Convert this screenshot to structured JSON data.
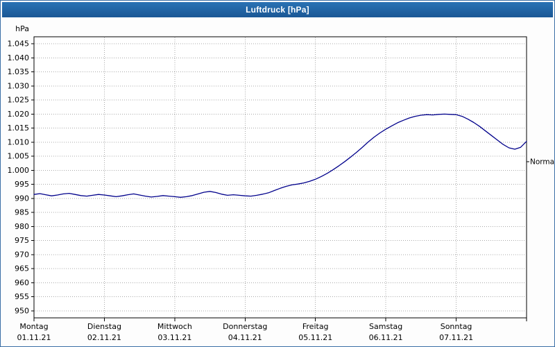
{
  "title": "Luftdruck [hPa]",
  "colors": {
    "titlebar_start": "#2a72b4",
    "titlebar_end": "#1a5795",
    "window_border": "#3a6ea5",
    "title_text": "#ffffff",
    "line": "#00008b",
    "grid": "#a8a8a8",
    "axis": "#000000",
    "plot_background": "#ffffff"
  },
  "chart_data": {
    "type": "line",
    "title": "Luftdruck [hPa]",
    "ylabel": "hPa",
    "xlabel": "",
    "grid": true,
    "legend_position": "none",
    "ylim": [
      947.5,
      1047.5
    ],
    "x_range_hours": [
      0,
      168
    ],
    "y_ticks": [
      {
        "value": 1045,
        "label": "1.045"
      },
      {
        "value": 1040,
        "label": "1.040"
      },
      {
        "value": 1035,
        "label": "1.035"
      },
      {
        "value": 1030,
        "label": "1.030"
      },
      {
        "value": 1025,
        "label": "1.025"
      },
      {
        "value": 1020,
        "label": "1.020"
      },
      {
        "value": 1015,
        "label": "1.015"
      },
      {
        "value": 1010,
        "label": "1.010"
      },
      {
        "value": 1005,
        "label": "1.005"
      },
      {
        "value": 1000,
        "label": "1.000"
      },
      {
        "value": 995,
        "label": "995"
      },
      {
        "value": 990,
        "label": "990"
      },
      {
        "value": 985,
        "label": "985"
      },
      {
        "value": 980,
        "label": "980"
      },
      {
        "value": 975,
        "label": "975"
      },
      {
        "value": 970,
        "label": "970"
      },
      {
        "value": 965,
        "label": "965"
      },
      {
        "value": 960,
        "label": "960"
      },
      {
        "value": 955,
        "label": "955"
      },
      {
        "value": 950,
        "label": "950"
      }
    ],
    "x_days": [
      {
        "name": "Montag",
        "date": "01.11.21"
      },
      {
        "name": "Dienstag",
        "date": "02.11.21"
      },
      {
        "name": "Mittwoch",
        "date": "03.11.21"
      },
      {
        "name": "Donnerstag",
        "date": "04.11.21"
      },
      {
        "name": "Freitag",
        "date": "05.11.21"
      },
      {
        "name": "Samstag",
        "date": "06.11.21"
      },
      {
        "name": "Sonntag",
        "date": "07.11.21"
      }
    ],
    "normal_marker": {
      "label": "Normal",
      "value": 1003
    },
    "series": [
      {
        "name": "Luftdruck",
        "unit": "hPa",
        "points": [
          [
            0,
            991.4
          ],
          [
            2,
            991.7
          ],
          [
            4,
            991.3
          ],
          [
            6,
            990.9
          ],
          [
            8,
            991.2
          ],
          [
            10,
            991.6
          ],
          [
            12,
            991.8
          ],
          [
            14,
            991.4
          ],
          [
            16,
            991.0
          ],
          [
            18,
            990.8
          ],
          [
            20,
            991.1
          ],
          [
            22,
            991.4
          ],
          [
            24,
            991.2
          ],
          [
            26,
            990.9
          ],
          [
            28,
            990.6
          ],
          [
            30,
            990.9
          ],
          [
            32,
            991.3
          ],
          [
            34,
            991.6
          ],
          [
            36,
            991.2
          ],
          [
            38,
            990.8
          ],
          [
            40,
            990.5
          ],
          [
            42,
            990.7
          ],
          [
            44,
            991.0
          ],
          [
            46,
            990.8
          ],
          [
            48,
            990.6
          ],
          [
            50,
            990.4
          ],
          [
            52,
            990.6
          ],
          [
            54,
            991.0
          ],
          [
            56,
            991.6
          ],
          [
            58,
            992.2
          ],
          [
            60,
            992.5
          ],
          [
            62,
            992.1
          ],
          [
            64,
            991.5
          ],
          [
            66,
            991.1
          ],
          [
            68,
            991.3
          ],
          [
            70,
            991.1
          ],
          [
            72,
            990.9
          ],
          [
            74,
            990.8
          ],
          [
            76,
            991.1
          ],
          [
            78,
            991.5
          ],
          [
            80,
            992.0
          ],
          [
            82,
            992.8
          ],
          [
            84,
            993.6
          ],
          [
            86,
            994.3
          ],
          [
            88,
            994.8
          ],
          [
            90,
            995.1
          ],
          [
            92,
            995.5
          ],
          [
            94,
            996.1
          ],
          [
            96,
            996.8
          ],
          [
            98,
            997.8
          ],
          [
            100,
            998.9
          ],
          [
            102,
            1000.2
          ],
          [
            104,
            1001.6
          ],
          [
            106,
            1003.1
          ],
          [
            108,
            1004.7
          ],
          [
            110,
            1006.4
          ],
          [
            112,
            1008.2
          ],
          [
            114,
            1010.1
          ],
          [
            116,
            1011.8
          ],
          [
            118,
            1013.3
          ],
          [
            120,
            1014.6
          ],
          [
            122,
            1015.8
          ],
          [
            124,
            1016.9
          ],
          [
            126,
            1017.8
          ],
          [
            128,
            1018.6
          ],
          [
            130,
            1019.2
          ],
          [
            132,
            1019.6
          ],
          [
            134,
            1019.8
          ],
          [
            136,
            1019.7
          ],
          [
            138,
            1019.9
          ],
          [
            140,
            1020.0
          ],
          [
            142,
            1019.9
          ],
          [
            144,
            1019.8
          ],
          [
            146,
            1019.2
          ],
          [
            148,
            1018.2
          ],
          [
            150,
            1017.0
          ],
          [
            152,
            1015.6
          ],
          [
            154,
            1014.0
          ],
          [
            156,
            1012.4
          ],
          [
            158,
            1010.8
          ],
          [
            160,
            1009.2
          ],
          [
            162,
            1008.0
          ],
          [
            164,
            1007.5
          ],
          [
            166,
            1008.2
          ],
          [
            168,
            1010.3
          ]
        ]
      }
    ]
  }
}
